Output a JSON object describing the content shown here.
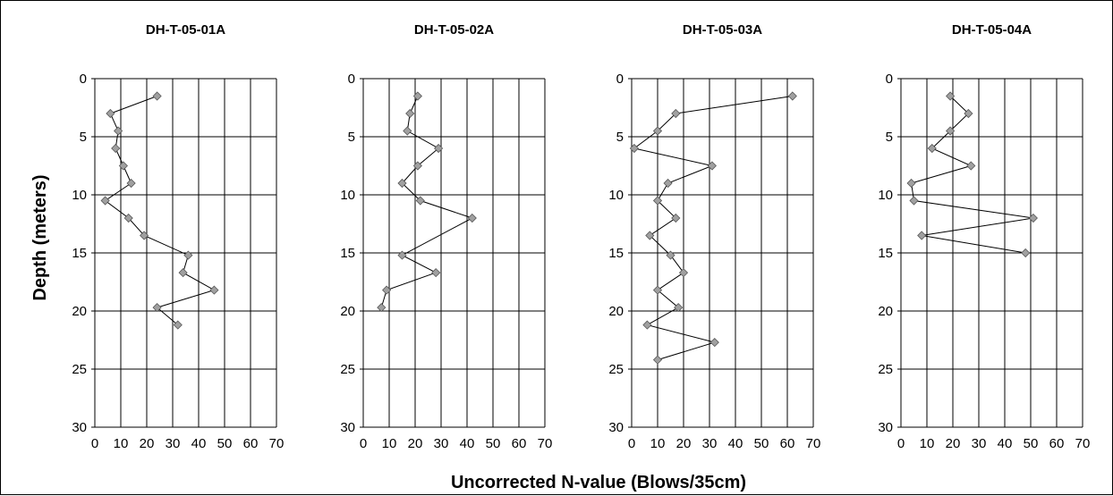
{
  "figure": {
    "ylabel": "Depth (meters)",
    "xlabel": "Uncorrected N-value (Blows/35cm)"
  },
  "chart_data": [
    {
      "type": "scatter",
      "title": "DH-T-05-01A",
      "xlim": [
        0,
        70
      ],
      "ylim": [
        0,
        30
      ],
      "y_inverted": true,
      "grid": true,
      "line_color": "#000000",
      "marker_color": "#a0a0a0",
      "x_ticks": [
        "0",
        "10",
        "20",
        "30",
        "40",
        "50",
        "60",
        "70"
      ],
      "y_ticks": [
        "0",
        "5",
        "10",
        "15",
        "20",
        "25",
        "30"
      ],
      "series": [
        {
          "x": [
            24,
            6,
            9,
            8,
            11,
            14,
            4,
            13,
            19,
            36,
            34,
            46,
            24,
            32
          ],
          "y": [
            1.5,
            3.0,
            4.5,
            6.0,
            7.5,
            9.0,
            10.5,
            12.0,
            13.5,
            15.2,
            16.7,
            18.2,
            19.7,
            21.2
          ]
        }
      ]
    },
    {
      "type": "scatter",
      "title": "DH-T-05-02A",
      "xlim": [
        0,
        70
      ],
      "ylim": [
        0,
        30
      ],
      "y_inverted": true,
      "grid": true,
      "line_color": "#000000",
      "marker_color": "#a0a0a0",
      "x_ticks": [
        "0",
        "10",
        "20",
        "30",
        "40",
        "50",
        "60",
        "70"
      ],
      "y_ticks": [
        "0",
        "5",
        "10",
        "15",
        "20",
        "25",
        "30"
      ],
      "series": [
        {
          "x": [
            21,
            18,
            17,
            29,
            21,
            15,
            22,
            42,
            15,
            28,
            9,
            7
          ],
          "y": [
            1.5,
            3.0,
            4.5,
            6.0,
            7.5,
            9.0,
            10.5,
            12.0,
            15.2,
            16.7,
            18.2,
            19.7
          ]
        }
      ]
    },
    {
      "type": "scatter",
      "title": "DH-T-05-03A",
      "xlim": [
        0,
        70
      ],
      "ylim": [
        0,
        30
      ],
      "y_inverted": true,
      "grid": true,
      "line_color": "#000000",
      "marker_color": "#a0a0a0",
      "x_ticks": [
        "0",
        "10",
        "20",
        "30",
        "40",
        "50",
        "60",
        "70"
      ],
      "y_ticks": [
        "0",
        "5",
        "10",
        "15",
        "20",
        "25",
        "30"
      ],
      "series": [
        {
          "x": [
            62,
            17,
            10,
            1,
            31,
            14,
            10,
            17,
            7,
            15,
            20,
            10,
            18,
            6,
            32,
            10
          ],
          "y": [
            1.5,
            3.0,
            4.5,
            6.0,
            7.5,
            9.0,
            10.5,
            12.0,
            13.5,
            15.2,
            16.7,
            18.2,
            19.7,
            21.2,
            22.7,
            24.2
          ]
        }
      ]
    },
    {
      "type": "scatter",
      "title": "DH-T-05-04A",
      "xlim": [
        0,
        70
      ],
      "ylim": [
        0,
        30
      ],
      "y_inverted": true,
      "grid": true,
      "line_color": "#000000",
      "marker_color": "#a0a0a0",
      "x_ticks": [
        "0",
        "10",
        "20",
        "30",
        "40",
        "50",
        "60",
        "70"
      ],
      "y_ticks": [
        "0",
        "5",
        "10",
        "15",
        "20",
        "25",
        "30"
      ],
      "series": [
        {
          "x": [
            19,
            26,
            19,
            12,
            27,
            4,
            5,
            51,
            8,
            48
          ],
          "y": [
            1.5,
            3.0,
            4.5,
            6.0,
            7.5,
            9.0,
            10.5,
            12.0,
            13.5,
            15.0
          ]
        }
      ]
    }
  ]
}
